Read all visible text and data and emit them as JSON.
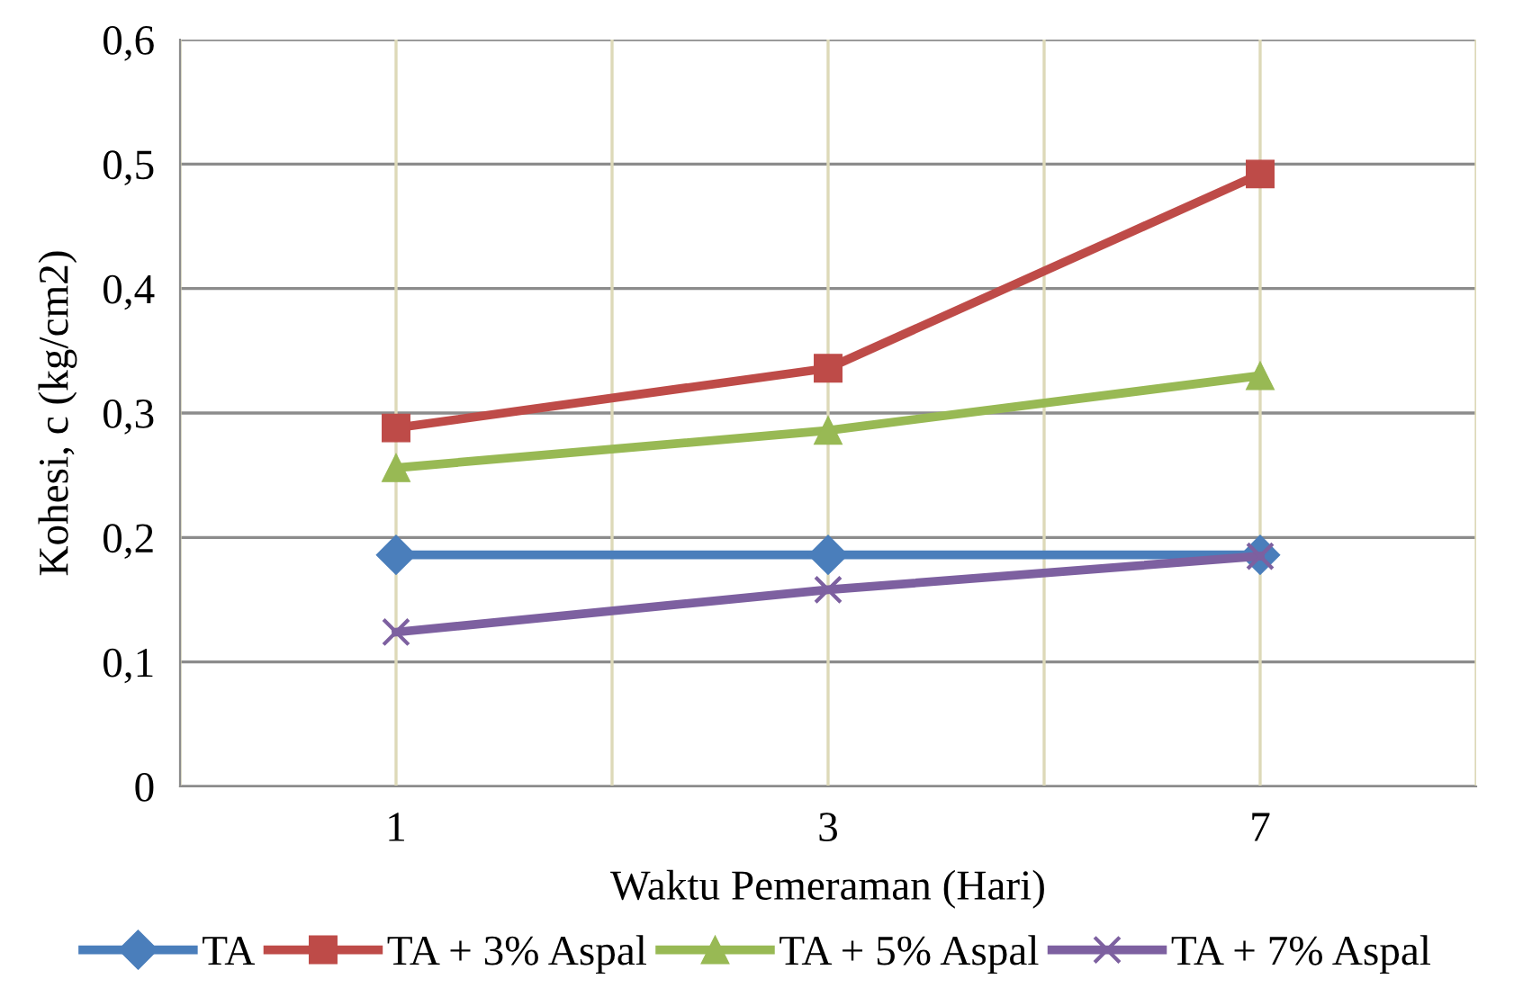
{
  "chart_data": {
    "type": "line",
    "xlabel": "Waktu Pemeraman (Hari)",
    "ylabel": "Kohesi, c (kg/cm2)",
    "categories": [
      "1",
      "3",
      "7"
    ],
    "series": [
      {
        "name": "TA",
        "color": "#4a7ebb",
        "marker": "diamond",
        "values": [
          0.186,
          0.186,
          0.186
        ]
      },
      {
        "name": "TA + 3% Aspal",
        "color": "#be4b48",
        "marker": "square",
        "values": [
          0.288,
          0.336,
          0.492
        ]
      },
      {
        "name": "TA + 5% Aspal",
        "color": "#98b954",
        "marker": "triangle",
        "values": [
          0.256,
          0.286,
          0.33
        ]
      },
      {
        "name": "TA + 7% Aspal",
        "color": "#7d60a0",
        "marker": "cross",
        "values": [
          0.124,
          0.158,
          0.185
        ]
      }
    ],
    "ylim": [
      0,
      0.6
    ],
    "yticks": [
      {
        "value": 0,
        "label": "0"
      },
      {
        "value": 0.1,
        "label": "0,1"
      },
      {
        "value": 0.2,
        "label": "0,2"
      },
      {
        "value": 0.3,
        "label": "0,3"
      },
      {
        "value": 0.4,
        "label": "0,4"
      },
      {
        "value": 0.5,
        "label": "0,5"
      },
      {
        "value": 0.6,
        "label": "0,6"
      }
    ],
    "grid": true,
    "legend": "bottom",
    "line_style": "solid"
  }
}
